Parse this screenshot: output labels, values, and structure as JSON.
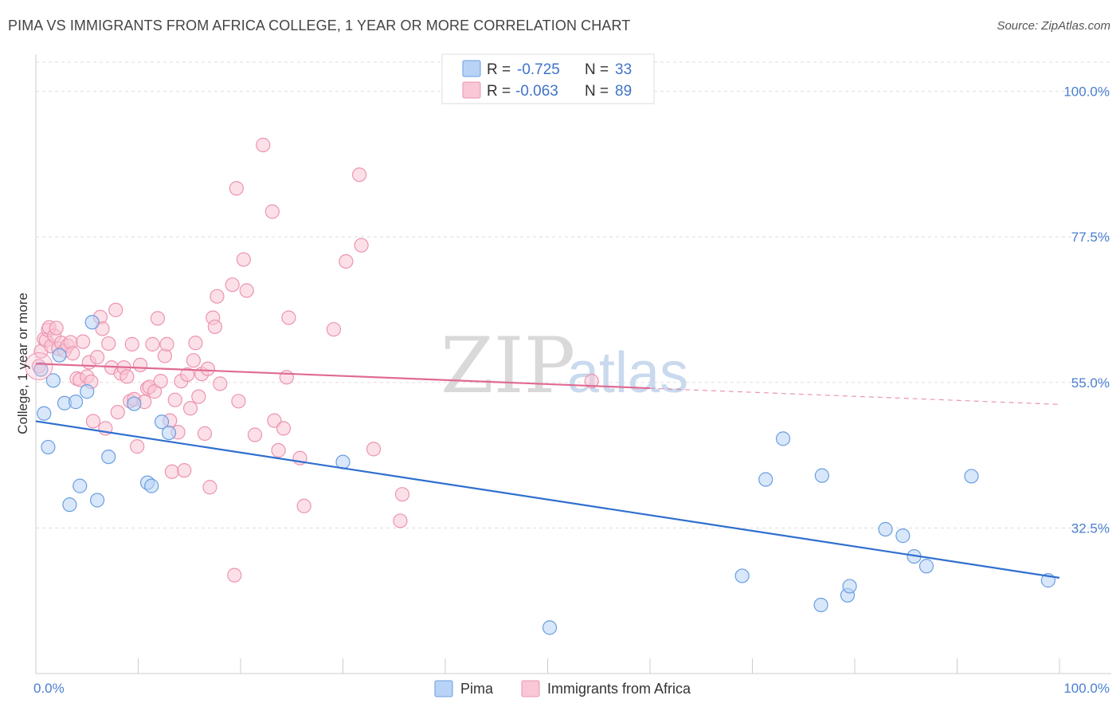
{
  "title": "PIMA VS IMMIGRANTS FROM AFRICA COLLEGE, 1 YEAR OR MORE CORRELATION CHART",
  "source": "Source: ZipAtlas.com",
  "watermark": {
    "zip": "ZIP",
    "atlas": "atlas"
  },
  "colors": {
    "pima_fill": "#b8d3f5",
    "pima_stroke": "#6a9ee0",
    "pima_line": "#2f6fcf",
    "africa_fill": "#f9c7d6",
    "africa_stroke": "#ec94b0",
    "africa_line": "#e06a93",
    "grid": "#dedede",
    "tick_label": "#4a7fd0"
  },
  "legend": {
    "r_label": "R =",
    "n_label": "N =",
    "items": [
      {
        "name": "Pima",
        "r": "-0.725",
        "n": "33"
      },
      {
        "name": "Immigrants from Africa",
        "r": "-0.063",
        "n": "89"
      }
    ]
  },
  "chart_data": {
    "type": "scatter",
    "title": "PIMA VS IMMIGRANTS FROM AFRICA COLLEGE, 1 YEAR OR MORE CORRELATION CHART",
    "xlabel": "",
    "ylabel": "College, 1 year or more",
    "xlim": [
      0,
      100
    ],
    "ylim": [
      10,
      104.5
    ],
    "x_tick_labels": [
      "0.0%",
      "100.0%"
    ],
    "y_ticks": [
      32.5,
      55.0,
      77.5,
      100.0
    ],
    "y_tick_labels": [
      "32.5%",
      "55.0%",
      "77.5%",
      "100.0%"
    ],
    "grid": true,
    "legend_position": "top-center",
    "series": [
      {
        "name": "Pima",
        "points": [
          [
            0.5,
            57.0
          ],
          [
            0.8,
            50.2
          ],
          [
            1.2,
            45.0
          ],
          [
            1.7,
            55.3
          ],
          [
            2.3,
            59.2
          ],
          [
            2.8,
            51.8
          ],
          [
            3.3,
            36.1
          ],
          [
            3.9,
            52.0
          ],
          [
            4.3,
            39.0
          ],
          [
            5.0,
            53.6
          ],
          [
            5.5,
            64.3
          ],
          [
            6.0,
            36.8
          ],
          [
            7.1,
            43.5
          ],
          [
            9.6,
            51.7
          ],
          [
            10.9,
            39.5
          ],
          [
            11.3,
            39.0
          ],
          [
            12.3,
            48.9
          ],
          [
            13.0,
            47.2
          ],
          [
            30.0,
            42.7
          ],
          [
            50.2,
            17.1
          ],
          [
            69.0,
            25.1
          ],
          [
            71.3,
            40.0
          ],
          [
            73.0,
            46.3
          ],
          [
            76.7,
            20.6
          ],
          [
            76.8,
            40.6
          ],
          [
            79.3,
            22.1
          ],
          [
            79.5,
            23.5
          ],
          [
            83.0,
            32.3
          ],
          [
            84.7,
            31.3
          ],
          [
            85.8,
            28.1
          ],
          [
            87.0,
            26.6
          ],
          [
            91.4,
            40.5
          ],
          [
            98.9,
            24.4
          ]
        ],
        "trend": {
          "x": [
            0,
            100
          ],
          "y": [
            49.0,
            24.8
          ]
        }
      },
      {
        "name": "Immigrants from Africa",
        "points": [
          [
            0.3,
            57.5
          ],
          [
            0.5,
            59.8
          ],
          [
            0.8,
            61.7
          ],
          [
            1.0,
            61.5
          ],
          [
            1.2,
            63.1
          ],
          [
            1.3,
            63.5
          ],
          [
            1.5,
            60.6
          ],
          [
            1.8,
            62.2
          ],
          [
            2.0,
            63.4
          ],
          [
            2.2,
            60.2
          ],
          [
            2.5,
            61.1
          ],
          [
            2.8,
            59.9
          ],
          [
            3.1,
            60.7
          ],
          [
            3.4,
            61.2
          ],
          [
            3.6,
            59.5
          ],
          [
            4.0,
            55.6
          ],
          [
            4.3,
            55.4
          ],
          [
            4.6,
            61.3
          ],
          [
            5.0,
            55.9
          ],
          [
            5.2,
            58.1
          ],
          [
            5.4,
            55.1
          ],
          [
            5.6,
            49.0
          ],
          [
            6.0,
            58.9
          ],
          [
            6.3,
            65.1
          ],
          [
            6.5,
            63.3
          ],
          [
            6.8,
            47.9
          ],
          [
            7.1,
            61.0
          ],
          [
            7.4,
            57.3
          ],
          [
            7.8,
            66.2
          ],
          [
            8.0,
            50.4
          ],
          [
            8.3,
            56.4
          ],
          [
            8.6,
            57.3
          ],
          [
            8.9,
            55.9
          ],
          [
            9.2,
            52.1
          ],
          [
            9.4,
            60.9
          ],
          [
            9.6,
            52.4
          ],
          [
            9.9,
            45.1
          ],
          [
            10.2,
            57.7
          ],
          [
            10.6,
            52.0
          ],
          [
            10.9,
            54.1
          ],
          [
            11.1,
            54.3
          ],
          [
            11.4,
            60.9
          ],
          [
            11.6,
            53.6
          ],
          [
            11.9,
            64.9
          ],
          [
            12.2,
            55.2
          ],
          [
            12.6,
            59.1
          ],
          [
            12.8,
            60.9
          ],
          [
            13.1,
            49.1
          ],
          [
            13.3,
            41.2
          ],
          [
            13.6,
            52.3
          ],
          [
            13.9,
            47.3
          ],
          [
            14.2,
            55.2
          ],
          [
            14.5,
            41.4
          ],
          [
            14.8,
            56.2
          ],
          [
            15.1,
            51.0
          ],
          [
            15.4,
            58.4
          ],
          [
            15.6,
            61.1
          ],
          [
            15.9,
            52.8
          ],
          [
            16.2,
            56.3
          ],
          [
            16.5,
            47.1
          ],
          [
            16.8,
            57.1
          ],
          [
            17.0,
            38.8
          ],
          [
            17.3,
            65.0
          ],
          [
            17.5,
            63.6
          ],
          [
            17.7,
            68.3
          ],
          [
            18.0,
            54.8
          ],
          [
            19.2,
            70.1
          ],
          [
            19.4,
            25.2
          ],
          [
            19.6,
            85.0
          ],
          [
            19.8,
            52.1
          ],
          [
            20.3,
            74.0
          ],
          [
            20.6,
            69.2
          ],
          [
            21.4,
            46.9
          ],
          [
            22.2,
            91.7
          ],
          [
            23.1,
            81.4
          ],
          [
            23.3,
            49.1
          ],
          [
            23.7,
            44.5
          ],
          [
            24.2,
            47.9
          ],
          [
            24.5,
            55.8
          ],
          [
            24.7,
            65.0
          ],
          [
            25.8,
            43.3
          ],
          [
            26.2,
            35.9
          ],
          [
            29.1,
            63.2
          ],
          [
            30.3,
            73.7
          ],
          [
            31.6,
            87.1
          ],
          [
            31.8,
            76.2
          ],
          [
            33.0,
            44.7
          ],
          [
            35.6,
            33.6
          ],
          [
            35.8,
            37.7
          ],
          [
            54.3,
            55.2
          ]
        ],
        "trend": {
          "x": [
            0,
            60
          ],
          "y": [
            57.9,
            54.1
          ]
        },
        "trend_dashed": {
          "x": [
            60,
            100
          ],
          "y": [
            54.1,
            51.6
          ]
        }
      }
    ]
  }
}
